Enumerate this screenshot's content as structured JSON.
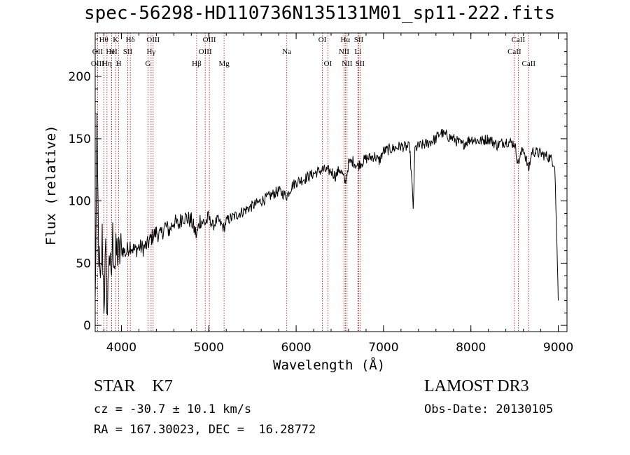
{
  "chart_data": {
    "type": "line",
    "title": "spec-56298-HD110736N135131M01_sp11-222.fits",
    "xlabel": "Wavelength (Å)",
    "ylabel": "Flux (relative)",
    "xlim": [
      3700,
      9100
    ],
    "ylim": [
      -5,
      235
    ],
    "xticks": [
      4000,
      5000,
      6000,
      7000,
      8000,
      9000
    ],
    "yticks": [
      0,
      50,
      100,
      150,
      200
    ],
    "grid": false,
    "series": [
      {
        "name": "spectrum",
        "x": [
          3700,
          3720,
          3740,
          3760,
          3780,
          3800,
          3820,
          3840,
          3860,
          3880,
          3900,
          3925,
          3950,
          3975,
          4000,
          4050,
          4100,
          4150,
          4200,
          4250,
          4300,
          4340,
          4400,
          4450,
          4500,
          4550,
          4600,
          4650,
          4700,
          4750,
          4800,
          4861,
          4900,
          4950,
          5000,
          5050,
          5100,
          5175,
          5200,
          5300,
          5400,
          5500,
          5600,
          5700,
          5800,
          5893,
          5950,
          6000,
          6100,
          6200,
          6300,
          6400,
          6450,
          6500,
          6563,
          6600,
          6650,
          6700,
          6800,
          6900,
          6950,
          7000,
          7100,
          7200,
          7300,
          7340,
          7360,
          7400,
          7500,
          7600,
          7650,
          7700,
          7800,
          7900,
          8000,
          8100,
          8200,
          8300,
          8400,
          8500,
          8540,
          8600,
          8660,
          8700,
          8800,
          8900,
          8960,
          8990,
          9000
        ],
        "y": [
          15,
          150,
          60,
          25,
          70,
          20,
          55,
          10,
          65,
          30,
          70,
          50,
          60,
          55,
          62,
          58,
          65,
          60,
          63,
          62,
          65,
          70,
          75,
          72,
          80,
          76,
          84,
          80,
          88,
          86,
          84,
          72,
          85,
          82,
          86,
          80,
          85,
          78,
          84,
          88,
          92,
          96,
          100,
          104,
          108,
          104,
          112,
          115,
          118,
          122,
          125,
          124,
          120,
          126,
          115,
          130,
          132,
          128,
          134,
          136,
          132,
          140,
          142,
          144,
          143,
          95,
          142,
          144,
          146,
          150,
          155,
          153,
          150,
          145,
          150,
          148,
          150,
          145,
          148,
          146,
          130,
          143,
          125,
          140,
          138,
          135,
          130,
          50,
          20
        ]
      }
    ],
    "lines": [
      {
        "label": "Hθ",
        "x": 3798,
        "row": 1
      },
      {
        "label": "OII",
        "x": 3727,
        "row": 2
      },
      {
        "label": "OIII",
        "x": 3727,
        "row": 3
      },
      {
        "label": "Hη",
        "x": 3835,
        "row": 3
      },
      {
        "label": "H",
        "x": 3889,
        "row": 2
      },
      {
        "label": "K",
        "x": 3934,
        "row": 1
      },
      {
        "label": "H",
        "x": 3969,
        "row": 3
      },
      {
        "label": "HeI",
        "x": 3889,
        "row": 2
      },
      {
        "label": "SII",
        "x": 4072,
        "row": 2
      },
      {
        "label": "Hδ",
        "x": 4102,
        "row": 1
      },
      {
        "label": "OIII",
        "x": 4363,
        "row": 1
      },
      {
        "label": "Hγ",
        "x": 4340,
        "row": 2
      },
      {
        "label": "G",
        "x": 4304,
        "row": 3
      },
      {
        "label": "Hβ",
        "x": 4861,
        "row": 3
      },
      {
        "label": "OIII",
        "x": 5007,
        "row": 1
      },
      {
        "label": "OIII",
        "x": 4959,
        "row": 2
      },
      {
        "label": "Mg",
        "x": 5175,
        "row": 3
      },
      {
        "label": "Na",
        "x": 5893,
        "row": 2
      },
      {
        "label": "OI",
        "x": 6300,
        "row": 1
      },
      {
        "label": "OI",
        "x": 6363,
        "row": 3
      },
      {
        "label": "Hα",
        "x": 6563,
        "row": 1
      },
      {
        "label": "NII",
        "x": 6548,
        "row": 2
      },
      {
        "label": "NII",
        "x": 6583,
        "row": 3
      },
      {
        "label": "SII",
        "x": 6716,
        "row": 1
      },
      {
        "label": "Li",
        "x": 6707,
        "row": 2
      },
      {
        "label": "SII",
        "x": 6731,
        "row": 3
      },
      {
        "label": "CaII",
        "x": 8498,
        "row": 2
      },
      {
        "label": "CaII",
        "x": 8542,
        "row": 1
      },
      {
        "label": "CaII",
        "x": 8662,
        "row": 3
      }
    ]
  },
  "info": {
    "class_line": "STAR    K7",
    "cz_line": "cz = -30.7 ± 10.1 km/s",
    "radec_line": "RA = 167.30023, DEC =  16.28772",
    "survey": "LAMOST DR3",
    "obs_date": "Obs-Date: 20130105"
  }
}
